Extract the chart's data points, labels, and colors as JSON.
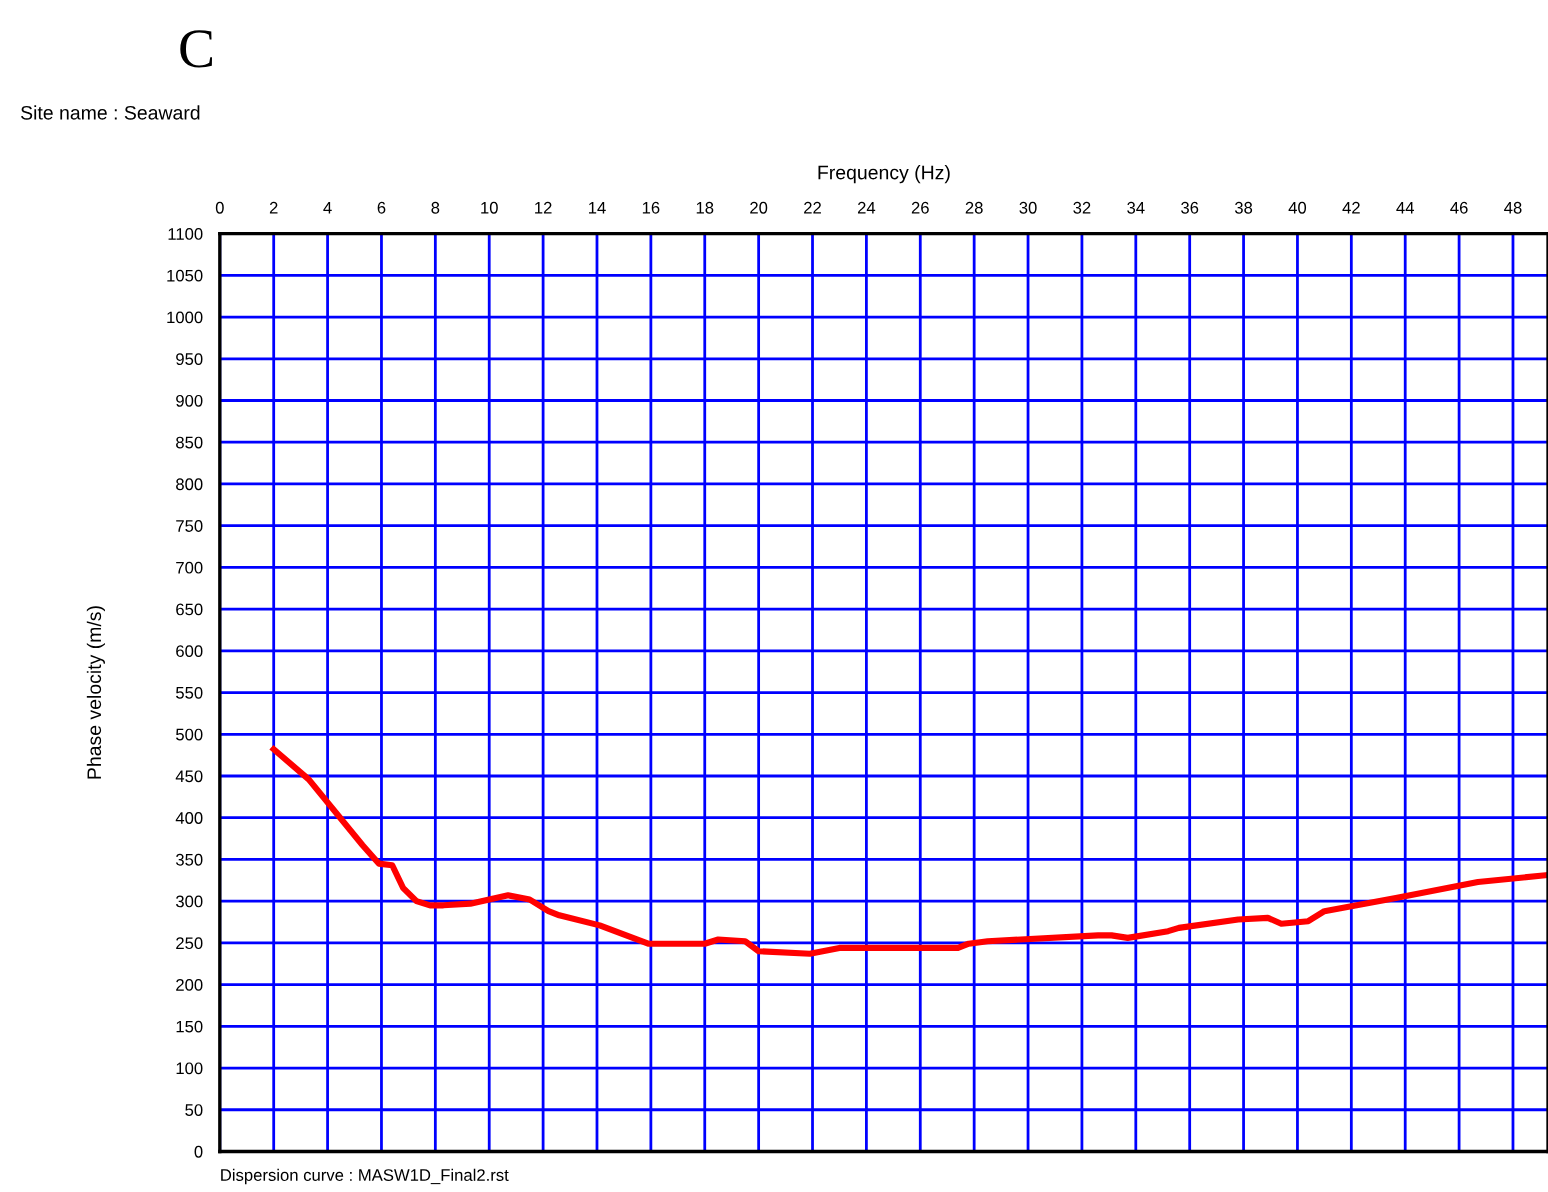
{
  "chart_data": {
    "type": "line",
    "title": "C",
    "subtitle": "Site name : Seaward",
    "xlabel": "Frequency (Hz)",
    "ylabel": "Phase velocity (m/s)",
    "annotations": [
      "Dispersion curve : MASW1D_Final2.rst"
    ],
    "x": [
      2.0,
      3.3,
      5.3,
      5.9,
      6.4,
      6.8,
      7.3,
      7.8,
      8.3,
      9.3,
      10.0,
      10.7,
      11.5,
      12.2,
      12.6,
      14.1,
      15.9,
      18.0,
      18.5,
      19.5,
      20.0,
      21.9,
      23.0,
      27.4,
      27.8,
      28.5,
      32.6,
      33.1,
      33.7,
      35.2,
      35.6,
      37.8,
      38.9,
      39.4,
      40.4,
      41.0,
      43.7,
      46.7,
      49.2
    ],
    "series": [
      {
        "color": "#ff0000",
        "values": [
          482,
          446,
          367,
          345,
          343,
          316,
          300,
          295,
          295,
          297,
          302,
          307,
          302,
          288,
          283,
          271,
          249,
          249,
          254,
          252,
          240,
          237,
          244,
          244,
          249,
          252,
          259,
          259,
          256,
          264,
          268,
          278,
          280,
          273,
          276,
          288,
          304,
          323,
          331
        ]
      }
    ],
    "xlim": [
      0,
      49.3
    ],
    "xticks": [
      0,
      2,
      4,
      6,
      8,
      10,
      12,
      14,
      16,
      18,
      20,
      22,
      24,
      26,
      28,
      30,
      32,
      34,
      36,
      38,
      40,
      42,
      44,
      46,
      48
    ],
    "ylim": [
      0,
      1100
    ],
    "yticks": [
      0,
      50,
      100,
      150,
      200,
      250,
      300,
      350,
      400,
      450,
      500,
      550,
      600,
      650,
      700,
      750,
      800,
      850,
      900,
      950,
      1000,
      1050,
      1100
    ],
    "grid": true,
    "line_style": "solid",
    "marker": "none"
  }
}
